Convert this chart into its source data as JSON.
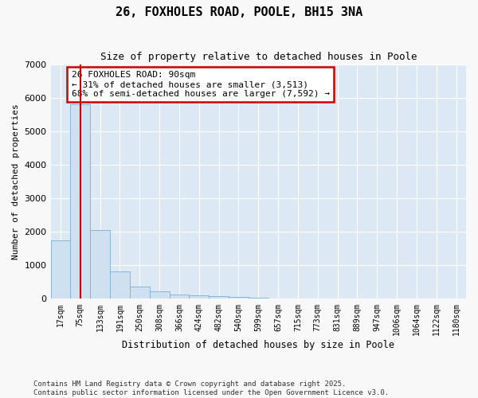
{
  "title": "26, FOXHOLES ROAD, POOLE, BH15 3NA",
  "subtitle": "Size of property relative to detached houses in Poole",
  "xlabel": "Distribution of detached houses by size in Poole",
  "ylabel": "Number of detached properties",
  "categories": [
    "17sqm",
    "75sqm",
    "133sqm",
    "191sqm",
    "250sqm",
    "308sqm",
    "366sqm",
    "424sqm",
    "482sqm",
    "540sqm",
    "599sqm",
    "657sqm",
    "715sqm",
    "773sqm",
    "831sqm",
    "889sqm",
    "947sqm",
    "1006sqm",
    "1064sqm",
    "1122sqm",
    "1180sqm"
  ],
  "values": [
    1750,
    5800,
    2050,
    820,
    360,
    230,
    130,
    100,
    80,
    50,
    30,
    20,
    10,
    5,
    3,
    2,
    1,
    1,
    0,
    0,
    0
  ],
  "bar_color": "#cfe0f0",
  "bar_edge_color": "#7bafd4",
  "vline_x_index": 1,
  "vline_color": "#cc0000",
  "annotation_line1": "26 FOXHOLES ROAD: 90sqm",
  "annotation_line2": "← 31% of detached houses are smaller (3,513)",
  "annotation_line3": "68% of semi-detached houses are larger (7,592) →",
  "annotation_box_color": "#cc0000",
  "ylim": [
    0,
    7000
  ],
  "yticks": [
    0,
    1000,
    2000,
    3000,
    4000,
    5000,
    6000,
    7000
  ],
  "fig_bg": "#f8f8f8",
  "plot_bg": "#dce9f5",
  "grid_color": "#ffffff",
  "footer_line1": "Contains HM Land Registry data © Crown copyright and database right 2025.",
  "footer_line2": "Contains public sector information licensed under the Open Government Licence v3.0."
}
